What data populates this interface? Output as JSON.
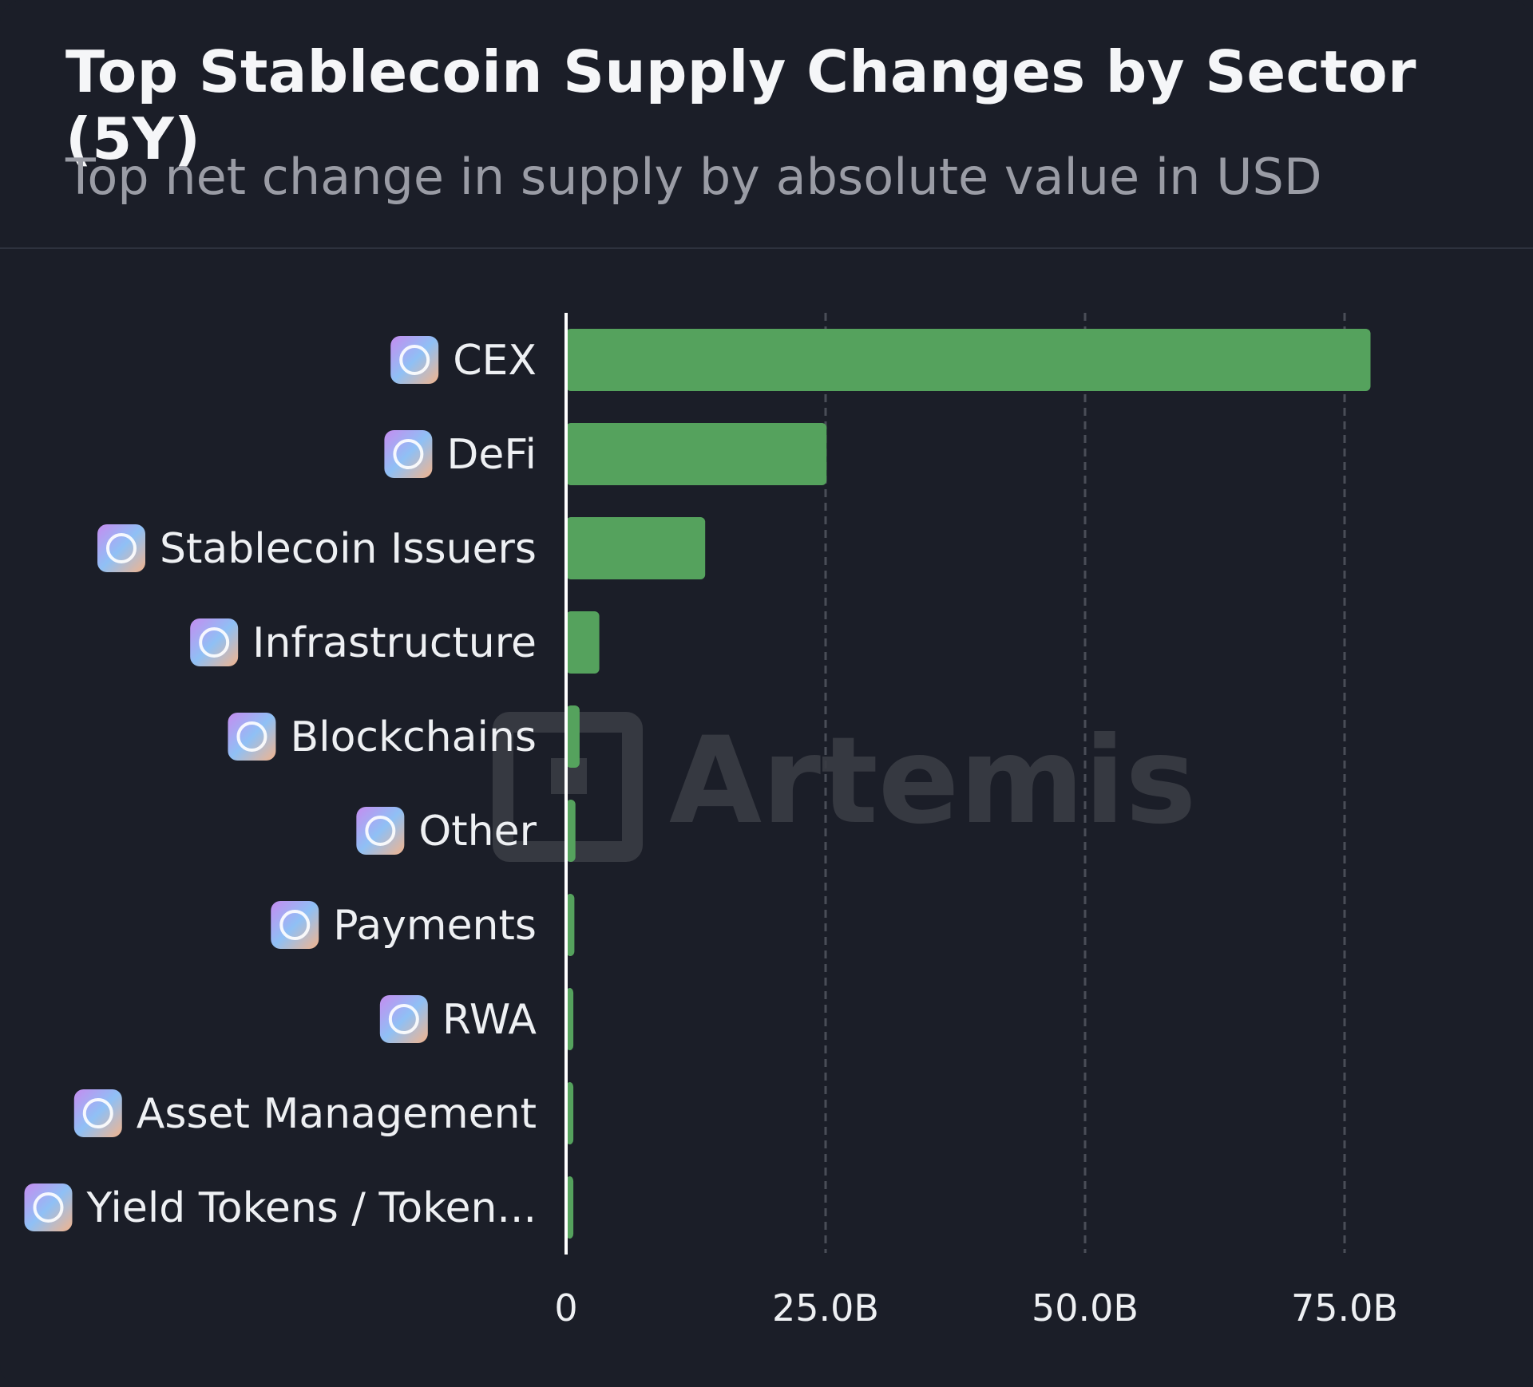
{
  "card": {
    "title": "Top Stablecoin Supply Changes by Sector (5Y)",
    "subtitle": "Top net change in supply by absolute value in USD"
  },
  "watermark": {
    "text": "Artemis"
  },
  "colors": {
    "bar": "#55a25d",
    "grid": "#4a4d57",
    "axis": "#ffffff",
    "background": "#1b1e28"
  },
  "chart_data": {
    "type": "bar",
    "orientation": "horizontal",
    "title": "Top Stablecoin Supply Changes by Sector (5Y)",
    "subtitle": "Top net change in supply by absolute value in USD",
    "unit": "USD (billions)",
    "xlim": [
      0,
      80
    ],
    "xticks": [
      {
        "value": 0,
        "label": "0"
      },
      {
        "value": 25,
        "label": "25.0B"
      },
      {
        "value": 50,
        "label": "50.0B"
      },
      {
        "value": 75,
        "label": "75.0B"
      }
    ],
    "grid": true,
    "categories": [
      {
        "label": "CEX",
        "icon": "bank-icon",
        "value": 77.5
      },
      {
        "label": "DeFi",
        "icon": "defi-grid-icon",
        "value": 25.1
      },
      {
        "label": "Stablecoin Issuers",
        "icon": "dollar-coin-icon",
        "value": 13.4
      },
      {
        "label": "Infrastructure",
        "icon": "cloud-database-icon",
        "value": 3.2
      },
      {
        "label": "Blockchains",
        "icon": "cube-icon",
        "value": 1.3
      },
      {
        "label": "Other",
        "icon": "ellipsis-chat-icon",
        "value": 0.9
      },
      {
        "label": "Payments",
        "icon": "wallet-icon",
        "value": 0.8
      },
      {
        "label": "RWA",
        "icon": "buildings-icon",
        "value": 0.7
      },
      {
        "label": "Asset Management",
        "icon": "piggy-bank-icon",
        "value": 0.7
      },
      {
        "label": "Yield Tokens / Token...",
        "icon": "yield-token-icon",
        "value": 0.7
      }
    ]
  }
}
